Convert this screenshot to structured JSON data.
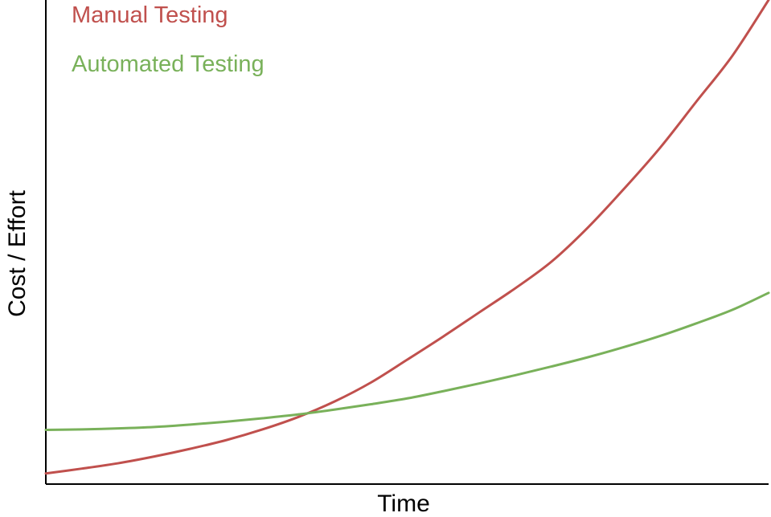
{
  "chart_data": {
    "type": "line",
    "title": "",
    "xlabel": "Time",
    "ylabel": "Cost / Effort",
    "xlim": [
      0,
      10
    ],
    "ylim": [
      0,
      10
    ],
    "grid": false,
    "legend_placement": "top-left",
    "series": [
      {
        "name": "Manual Testing",
        "color": "#c0504d",
        "x": [
          0,
          0.5,
          1,
          1.5,
          2,
          2.5,
          3,
          3.5,
          4,
          4.5,
          5,
          5.5,
          6,
          6.5,
          7,
          7.5,
          8,
          8.5,
          9,
          9.5,
          10
        ],
        "y": [
          0.22,
          0.32,
          0.43,
          0.57,
          0.73,
          0.91,
          1.13,
          1.39,
          1.71,
          2.1,
          2.57,
          3.05,
          3.55,
          4.05,
          4.6,
          5.3,
          6.1,
          6.95,
          7.9,
          8.85,
          10.0
        ]
      },
      {
        "name": "Automated Testing",
        "color": "#79b15a",
        "x": [
          0,
          0.5,
          1,
          1.5,
          2,
          2.5,
          3,
          3.5,
          4,
          4.5,
          5,
          5.5,
          6,
          6.5,
          7,
          7.5,
          8,
          8.5,
          9,
          9.5,
          10
        ],
        "y": [
          1.12,
          1.13,
          1.15,
          1.18,
          1.23,
          1.29,
          1.36,
          1.44,
          1.54,
          1.65,
          1.77,
          1.92,
          2.08,
          2.25,
          2.43,
          2.62,
          2.83,
          3.06,
          3.32,
          3.6,
          3.95
        ]
      }
    ]
  }
}
